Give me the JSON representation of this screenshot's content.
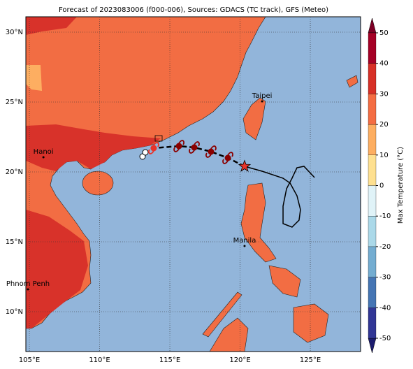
{
  "chart_data": {
    "type": "map",
    "title": "Forecast of 2023083006 (f000-006), Sources: GDACS (TC track), GFS (Meteo)",
    "xlim": [
      104.75,
      128.58
    ],
    "ylim": [
      7.15,
      31.1
    ],
    "xticks": [
      {
        "value": 105,
        "label": "105°E"
      },
      {
        "value": 110,
        "label": "110°E"
      },
      {
        "value": 115,
        "label": "115°E"
      },
      {
        "value": 120,
        "label": "120°E"
      },
      {
        "value": 125,
        "label": "125°E"
      }
    ],
    "yticks": [
      {
        "value": 10,
        "label": "10°N"
      },
      {
        "value": 15,
        "label": "15°N"
      },
      {
        "value": 20,
        "label": "20°N"
      },
      {
        "value": 25,
        "label": "25°N"
      },
      {
        "value": 30,
        "label": "30°N"
      }
    ],
    "grid": true,
    "cities": [
      {
        "name": "Taipei",
        "lon": 121.57,
        "lat": 25.05
      },
      {
        "name": "Hanoi",
        "lon": 106.0,
        "lat": 21.05
      },
      {
        "name": "Manila",
        "lon": 120.32,
        "lat": 14.7
      },
      {
        "name": "Phnom Penh",
        "lon": 104.9,
        "lat": 11.6
      }
    ],
    "current_position": {
      "lon": 120.32,
      "lat": 20.4,
      "color": "#e8332a"
    },
    "forecast_track": {
      "lon": [
        120.32,
        119.13,
        117.93,
        116.74,
        115.65,
        113.85
      ],
      "lat": [
        20.4,
        21.0,
        21.45,
        21.75,
        21.85,
        21.7
      ],
      "colors": [
        "#e8332a",
        "#8b0000",
        "#8b0000",
        "#8b0000",
        "#8b0000",
        "#e8332a"
      ]
    },
    "past_track": {
      "lon": [
        120.32,
        121.57,
        123.06,
        123.56,
        124.05,
        124.3,
        124.2,
        123.7,
        123.06,
        123.06,
        123.31,
        123.7,
        124.05,
        124.55,
        125.3
      ],
      "lat": [
        20.4,
        20.05,
        19.55,
        19.2,
        18.3,
        17.3,
        16.55,
        16.05,
        16.3,
        17.55,
        18.8,
        19.55,
        20.3,
        20.4,
        19.6
      ]
    },
    "colorbar": {
      "label": "Max Temperature (°C)",
      "levels": [
        -50,
        -40,
        -30,
        -20,
        -10,
        0,
        10,
        20,
        30,
        40,
        50
      ],
      "colors": [
        "#313695",
        "#4575b4",
        "#74add1",
        "#abd9e9",
        "#e0f3f8",
        "#fee090",
        "#fdae61",
        "#f46d43",
        "#d73027",
        "#a50026"
      ],
      "ticks": [
        -50,
        -40,
        -30,
        -20,
        -10,
        0,
        10,
        20,
        30,
        40,
        50
      ]
    }
  }
}
